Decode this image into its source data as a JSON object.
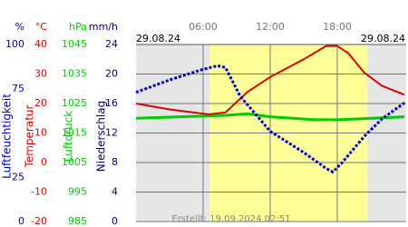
{
  "chart_data": {
    "type": "line",
    "date_start": "29.08.24",
    "date_end": "29.08.24",
    "footer": "Erstellt: 19.09.2024 02:51",
    "xlim": [
      0,
      24
    ],
    "xticks": [
      {
        "value": 6,
        "label": "06:00"
      },
      {
        "value": 12,
        "label": "12:00"
      },
      {
        "value": 18,
        "label": "18:00"
      }
    ],
    "daylight": [
      6.6,
      20.7
    ],
    "axes": [
      {
        "unit": "%",
        "title": "Luftfeuchtigkeit",
        "color": "#0000cc",
        "ylim": [
          0,
          100
        ],
        "yticks": [
          0,
          25,
          75,
          100
        ]
      },
      {
        "unit": "°C",
        "title": "Temperatur",
        "color": "#dd0000",
        "ylim": [
          -20,
          40
        ],
        "yticks": [
          -20,
          -10,
          0,
          10,
          20,
          30,
          40
        ]
      },
      {
        "unit": "hPa",
        "title": "Luftdruck",
        "color": "#00cc00",
        "ylim": [
          985,
          1045
        ],
        "yticks": [
          985,
          995,
          1005,
          1015,
          1025,
          1035,
          1045
        ]
      },
      {
        "unit": "mm/h",
        "title": "Niederschlag",
        "color": "#000080",
        "ylim": [
          0,
          24
        ],
        "yticks": [
          0,
          4,
          8,
          12,
          16,
          20,
          24
        ]
      }
    ],
    "series": [
      {
        "name": "Luftfeuchtigkeit",
        "axis": 0,
        "color": "#0000cc",
        "x": [
          0,
          3,
          6,
          7.3,
          8,
          9.3,
          12,
          15,
          17,
          17.6,
          18.4,
          20.4,
          22,
          24
        ],
        "values": [
          73,
          80,
          86,
          88,
          87,
          71,
          51,
          39,
          30,
          28,
          33,
          48,
          58,
          67
        ]
      },
      {
        "name": "Temperatur",
        "axis": 1,
        "color": "#dd0000",
        "x": [
          0,
          3,
          6.5,
          8,
          10,
          12,
          15,
          17,
          18,
          19,
          20.4,
          22,
          24
        ],
        "values": [
          20,
          18,
          16.3,
          17,
          24,
          29,
          35,
          39.5,
          39.5,
          37,
          30.5,
          26,
          23
        ]
      },
      {
        "name": "Luftdruck",
        "axis": 2,
        "color": "#00cc00",
        "x": [
          0,
          4,
          8,
          10,
          12,
          16,
          18,
          20,
          24
        ],
        "values": [
          1020,
          1020.5,
          1021,
          1021.5,
          1020.5,
          1019.5,
          1019.5,
          1019.8,
          1020.5
        ]
      }
    ]
  }
}
